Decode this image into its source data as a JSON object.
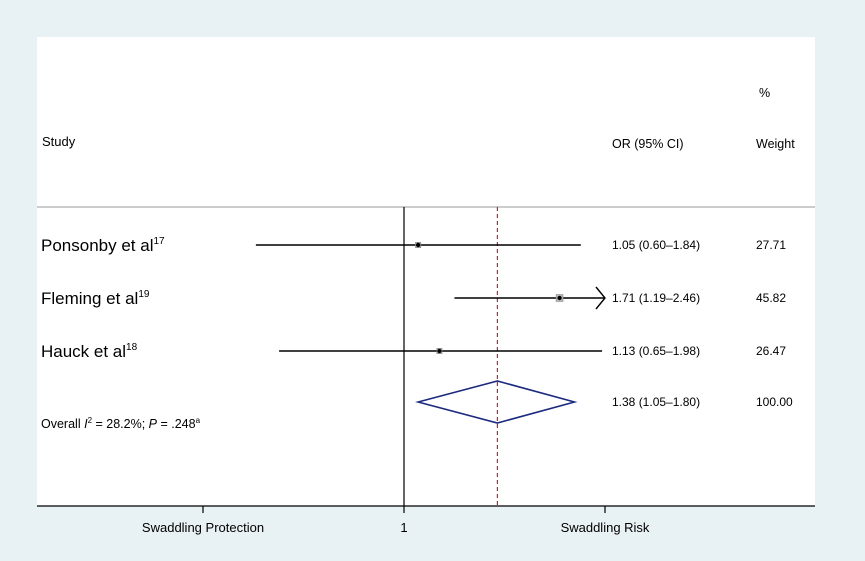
{
  "chart_data": {
    "type": "forest",
    "header": {
      "study": "Study",
      "ci": "OR (95% CI)",
      "weight_top": "%",
      "weight_bottom": "Weight"
    },
    "studies": [
      {
        "name": "Ponsonby et al",
        "ref": "17",
        "or": 1.05,
        "lo": 0.6,
        "hi": 1.84,
        "ci_text": "1.05 (0.60–1.84)",
        "weight": "27.71",
        "arrow": false
      },
      {
        "name": "Fleming et al",
        "ref": "19",
        "or": 1.71,
        "lo": 1.19,
        "hi": 2.46,
        "ci_text": "1.71 (1.19–2.46)",
        "weight": "45.82",
        "arrow": true
      },
      {
        "name": "Hauck et al",
        "ref": "18",
        "or": 1.13,
        "lo": 0.65,
        "hi": 1.98,
        "ci_text": "1.13 (0.65–1.98)",
        "weight": "26.47",
        "arrow": false
      }
    ],
    "overall": {
      "label_prefix": "Overall ",
      "i_symbol": "I",
      "i_sup": "2",
      "i_value": " = 28.2%; ",
      "p_symbol": "P",
      "p_value": " = .248",
      "p_sup": "a",
      "or": 1.38,
      "lo": 1.05,
      "hi": 1.8,
      "ci_text": "1.38 (1.05–1.80)",
      "weight": "100.00"
    },
    "x_axis": {
      "scale": "log",
      "min": 0.43,
      "max": 2.32,
      "null_value": 1,
      "tick_values": [
        0.5,
        1,
        2
      ],
      "tick_labels": [
        "Swaddling Protection",
        "1",
        "Swaddling Risk"
      ]
    },
    "colors": {
      "outer_background": "#e8f1f3",
      "plot_background": "#ffffff",
      "diamond": "#1c2a80",
      "overall_line": "#d2232a",
      "ci_line": "#000000",
      "axis": "#000000"
    }
  }
}
